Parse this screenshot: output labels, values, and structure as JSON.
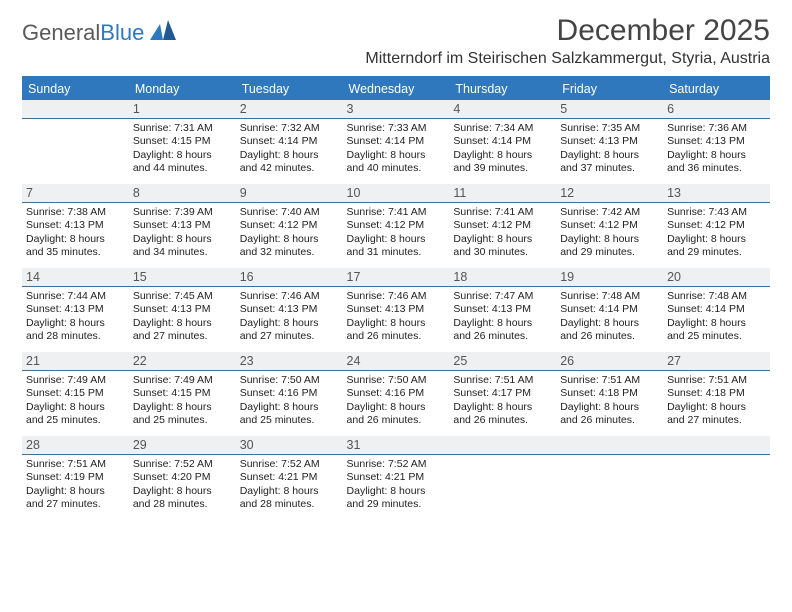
{
  "brand": {
    "part1": "General",
    "part2": "Blue"
  },
  "title": "December 2025",
  "location": "Mitterndorf im Steirischen Salzkammergut, Styria, Austria",
  "colors": {
    "header_bg": "#2f78bd",
    "header_fg": "#ffffff",
    "daynum_bg": "#eef0f2",
    "daynum_border": "#3e6f9e",
    "text": "#222222",
    "page_bg": "#ffffff"
  },
  "weekdays": [
    "Sunday",
    "Monday",
    "Tuesday",
    "Wednesday",
    "Thursday",
    "Friday",
    "Saturday"
  ],
  "weeks": [
    [
      {
        "n": "",
        "lines": []
      },
      {
        "n": "1",
        "lines": [
          "Sunrise: 7:31 AM",
          "Sunset: 4:15 PM",
          "Daylight: 8 hours",
          "and 44 minutes."
        ]
      },
      {
        "n": "2",
        "lines": [
          "Sunrise: 7:32 AM",
          "Sunset: 4:14 PM",
          "Daylight: 8 hours",
          "and 42 minutes."
        ]
      },
      {
        "n": "3",
        "lines": [
          "Sunrise: 7:33 AM",
          "Sunset: 4:14 PM",
          "Daylight: 8 hours",
          "and 40 minutes."
        ]
      },
      {
        "n": "4",
        "lines": [
          "Sunrise: 7:34 AM",
          "Sunset: 4:14 PM",
          "Daylight: 8 hours",
          "and 39 minutes."
        ]
      },
      {
        "n": "5",
        "lines": [
          "Sunrise: 7:35 AM",
          "Sunset: 4:13 PM",
          "Daylight: 8 hours",
          "and 37 minutes."
        ]
      },
      {
        "n": "6",
        "lines": [
          "Sunrise: 7:36 AM",
          "Sunset: 4:13 PM",
          "Daylight: 8 hours",
          "and 36 minutes."
        ]
      }
    ],
    [
      {
        "n": "7",
        "lines": [
          "Sunrise: 7:38 AM",
          "Sunset: 4:13 PM",
          "Daylight: 8 hours",
          "and 35 minutes."
        ]
      },
      {
        "n": "8",
        "lines": [
          "Sunrise: 7:39 AM",
          "Sunset: 4:13 PM",
          "Daylight: 8 hours",
          "and 34 minutes."
        ]
      },
      {
        "n": "9",
        "lines": [
          "Sunrise: 7:40 AM",
          "Sunset: 4:12 PM",
          "Daylight: 8 hours",
          "and 32 minutes."
        ]
      },
      {
        "n": "10",
        "lines": [
          "Sunrise: 7:41 AM",
          "Sunset: 4:12 PM",
          "Daylight: 8 hours",
          "and 31 minutes."
        ]
      },
      {
        "n": "11",
        "lines": [
          "Sunrise: 7:41 AM",
          "Sunset: 4:12 PM",
          "Daylight: 8 hours",
          "and 30 minutes."
        ]
      },
      {
        "n": "12",
        "lines": [
          "Sunrise: 7:42 AM",
          "Sunset: 4:12 PM",
          "Daylight: 8 hours",
          "and 29 minutes."
        ]
      },
      {
        "n": "13",
        "lines": [
          "Sunrise: 7:43 AM",
          "Sunset: 4:12 PM",
          "Daylight: 8 hours",
          "and 29 minutes."
        ]
      }
    ],
    [
      {
        "n": "14",
        "lines": [
          "Sunrise: 7:44 AM",
          "Sunset: 4:13 PM",
          "Daylight: 8 hours",
          "and 28 minutes."
        ]
      },
      {
        "n": "15",
        "lines": [
          "Sunrise: 7:45 AM",
          "Sunset: 4:13 PM",
          "Daylight: 8 hours",
          "and 27 minutes."
        ]
      },
      {
        "n": "16",
        "lines": [
          "Sunrise: 7:46 AM",
          "Sunset: 4:13 PM",
          "Daylight: 8 hours",
          "and 27 minutes."
        ]
      },
      {
        "n": "17",
        "lines": [
          "Sunrise: 7:46 AM",
          "Sunset: 4:13 PM",
          "Daylight: 8 hours",
          "and 26 minutes."
        ]
      },
      {
        "n": "18",
        "lines": [
          "Sunrise: 7:47 AM",
          "Sunset: 4:13 PM",
          "Daylight: 8 hours",
          "and 26 minutes."
        ]
      },
      {
        "n": "19",
        "lines": [
          "Sunrise: 7:48 AM",
          "Sunset: 4:14 PM",
          "Daylight: 8 hours",
          "and 26 minutes."
        ]
      },
      {
        "n": "20",
        "lines": [
          "Sunrise: 7:48 AM",
          "Sunset: 4:14 PM",
          "Daylight: 8 hours",
          "and 25 minutes."
        ]
      }
    ],
    [
      {
        "n": "21",
        "lines": [
          "Sunrise: 7:49 AM",
          "Sunset: 4:15 PM",
          "Daylight: 8 hours",
          "and 25 minutes."
        ]
      },
      {
        "n": "22",
        "lines": [
          "Sunrise: 7:49 AM",
          "Sunset: 4:15 PM",
          "Daylight: 8 hours",
          "and 25 minutes."
        ]
      },
      {
        "n": "23",
        "lines": [
          "Sunrise: 7:50 AM",
          "Sunset: 4:16 PM",
          "Daylight: 8 hours",
          "and 25 minutes."
        ]
      },
      {
        "n": "24",
        "lines": [
          "Sunrise: 7:50 AM",
          "Sunset: 4:16 PM",
          "Daylight: 8 hours",
          "and 26 minutes."
        ]
      },
      {
        "n": "25",
        "lines": [
          "Sunrise: 7:51 AM",
          "Sunset: 4:17 PM",
          "Daylight: 8 hours",
          "and 26 minutes."
        ]
      },
      {
        "n": "26",
        "lines": [
          "Sunrise: 7:51 AM",
          "Sunset: 4:18 PM",
          "Daylight: 8 hours",
          "and 26 minutes."
        ]
      },
      {
        "n": "27",
        "lines": [
          "Sunrise: 7:51 AM",
          "Sunset: 4:18 PM",
          "Daylight: 8 hours",
          "and 27 minutes."
        ]
      }
    ],
    [
      {
        "n": "28",
        "lines": [
          "Sunrise: 7:51 AM",
          "Sunset: 4:19 PM",
          "Daylight: 8 hours",
          "and 27 minutes."
        ]
      },
      {
        "n": "29",
        "lines": [
          "Sunrise: 7:52 AM",
          "Sunset: 4:20 PM",
          "Daylight: 8 hours",
          "and 28 minutes."
        ]
      },
      {
        "n": "30",
        "lines": [
          "Sunrise: 7:52 AM",
          "Sunset: 4:21 PM",
          "Daylight: 8 hours",
          "and 28 minutes."
        ]
      },
      {
        "n": "31",
        "lines": [
          "Sunrise: 7:52 AM",
          "Sunset: 4:21 PM",
          "Daylight: 8 hours",
          "and 29 minutes."
        ]
      },
      {
        "n": "",
        "lines": []
      },
      {
        "n": "",
        "lines": []
      },
      {
        "n": "",
        "lines": []
      }
    ]
  ]
}
